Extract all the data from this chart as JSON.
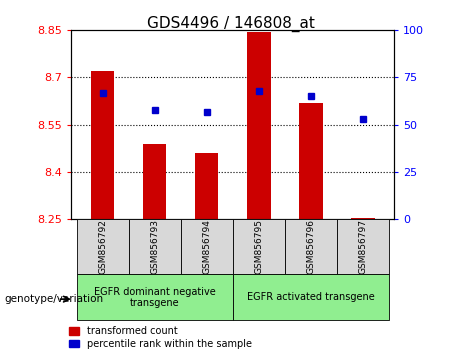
{
  "title": "GDS4496 / 146808_at",
  "samples": [
    "GSM856792",
    "GSM856793",
    "GSM856794",
    "GSM856795",
    "GSM856796",
    "GSM856797"
  ],
  "red_values": [
    8.72,
    8.49,
    8.46,
    8.845,
    8.62,
    8.255
  ],
  "blue_values": [
    67,
    58,
    57,
    68,
    65,
    53
  ],
  "ylim_left": [
    8.25,
    8.85
  ],
  "ylim_right": [
    0,
    100
  ],
  "yticks_left": [
    8.25,
    8.4,
    8.55,
    8.7,
    8.85
  ],
  "yticks_right": [
    0,
    25,
    50,
    75,
    100
  ],
  "ytick_labels_left": [
    "8.25",
    "8.4",
    "8.55",
    "8.7",
    "8.85"
  ],
  "ytick_labels_right": [
    "0",
    "25",
    "50",
    "75",
    "100"
  ],
  "grid_values": [
    8.4,
    8.55,
    8.7
  ],
  "bar_color": "#cc0000",
  "dot_color": "#0000cc",
  "bar_bottom": 8.25,
  "group1_label": "EGFR dominant negative\ntransgene",
  "group2_label": "EGFR activated transgene",
  "group1_indices": [
    0,
    1,
    2
  ],
  "group2_indices": [
    3,
    4,
    5
  ],
  "genotype_label": "genotype/variation",
  "legend_red": "transformed count",
  "legend_blue": "percentile rank within the sample",
  "bg_color": "#d8d8d8",
  "green_color": "#90ee90",
  "plot_bg": "#ffffff"
}
